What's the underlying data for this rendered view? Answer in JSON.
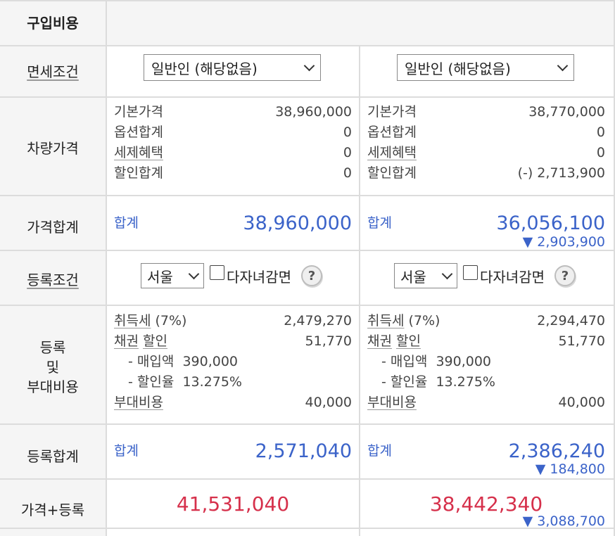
{
  "labels": {
    "header": "구입비용",
    "tax_condition": "면세조건",
    "vehicle_price": "차량가격",
    "price_total": "가격합계",
    "registration_condition": "등록조건",
    "registration_line1": "등록",
    "registration_line2": "및",
    "registration_line3": "부대비용",
    "registration_total": "등록합계",
    "price_plus_registration": "가격+등록"
  },
  "columns": [
    {
      "tax_select": "일반인 (해당없음)",
      "vehicle": {
        "base_label": "기본가격",
        "base": "38,960,000",
        "option_label": "옵션합계",
        "option": "0",
        "tax_benefit_label": "세제혜택",
        "tax_benefit": "0",
        "discount_label": "할인합계",
        "discount": "0"
      },
      "price_sum_label": "합계",
      "price_sum": "38,960,000",
      "price_delta": "",
      "region_select": "서울",
      "multichild_label": "다자녀감면",
      "help_glyph": "?",
      "registration": {
        "acq_tax_label": "취득세",
        "acq_tax_rate": "(7%)",
        "acq_tax": "2,479,270",
        "bond_label1": "채권",
        "bond_label2": "할인",
        "bond": "51,770",
        "purchase_label": "- 매입액",
        "purchase": "390,000",
        "discount_rate_label": "- 할인율",
        "discount_rate": "13.275%",
        "extra_label": "부대비용",
        "extra": "40,000"
      },
      "reg_sum_label": "합계",
      "reg_sum": "2,571,040",
      "reg_delta": "",
      "grand_total": "41,531,040",
      "grand_delta": ""
    },
    {
      "tax_select": "일반인 (해당없음)",
      "vehicle": {
        "base_label": "기본가격",
        "base": "38,770,000",
        "option_label": "옵션합계",
        "option": "0",
        "tax_benefit_label": "세제혜택",
        "tax_benefit": "0",
        "discount_label": "할인합계",
        "discount": "(-) 2,713,900"
      },
      "price_sum_label": "합계",
      "price_sum": "36,056,100",
      "price_delta": "▼ 2,903,900",
      "region_select": "서울",
      "multichild_label": "다자녀감면",
      "help_glyph": "?",
      "registration": {
        "acq_tax_label": "취득세",
        "acq_tax_rate": "(7%)",
        "acq_tax": "2,294,470",
        "bond_label1": "채권",
        "bond_label2": "할인",
        "bond": "51,770",
        "purchase_label": "- 매입액",
        "purchase": "390,000",
        "discount_rate_label": "- 할인율",
        "discount_rate": "13.275%",
        "extra_label": "부대비용",
        "extra": "40,000"
      },
      "reg_sum_label": "합계",
      "reg_sum": "2,386,240",
      "reg_delta": "▼ 184,800",
      "grand_total": "38,442,340",
      "grand_delta": "▼ 3,088,700"
    }
  ],
  "colors": {
    "accent_blue": "#3b63c9",
    "total_red": "#d6304b",
    "label_bg": "#f5f5f5",
    "border": "#dcdcdc"
  }
}
